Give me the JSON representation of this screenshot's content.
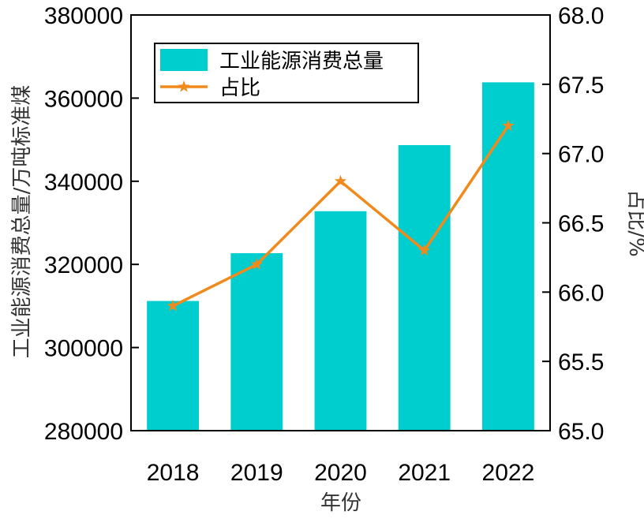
{
  "chart_data": {
    "type": "bar",
    "categories": [
      "2018",
      "2019",
      "2020",
      "2021",
      "2022"
    ],
    "series": [
      {
        "name": "工业能源消费总量",
        "type": "bar",
        "axis": "left",
        "color": "#00CDCD",
        "values": [
          311200,
          322700,
          332800,
          348700,
          363800
        ]
      },
      {
        "name": "占比",
        "type": "line",
        "axis": "right",
        "color": "#F08A1C",
        "marker": "star",
        "values": [
          65.9,
          66.2,
          66.8,
          66.3,
          67.2
        ]
      }
    ],
    "xlabel": "年份",
    "ylabel": "工业能源消费总量/万吨标准煤",
    "ylabel_right": "占比/%",
    "ylim": [
      280000,
      380000
    ],
    "ylim_right": [
      65.0,
      68.0
    ],
    "yticks": [
      "280000",
      "300000",
      "320000",
      "340000",
      "360000",
      "380000"
    ],
    "yticks_right": [
      "65.0",
      "65.5",
      "66.0",
      "66.5",
      "67.0",
      "67.5",
      "68.0"
    ],
    "legend_position": "top-left",
    "grid": false
  }
}
